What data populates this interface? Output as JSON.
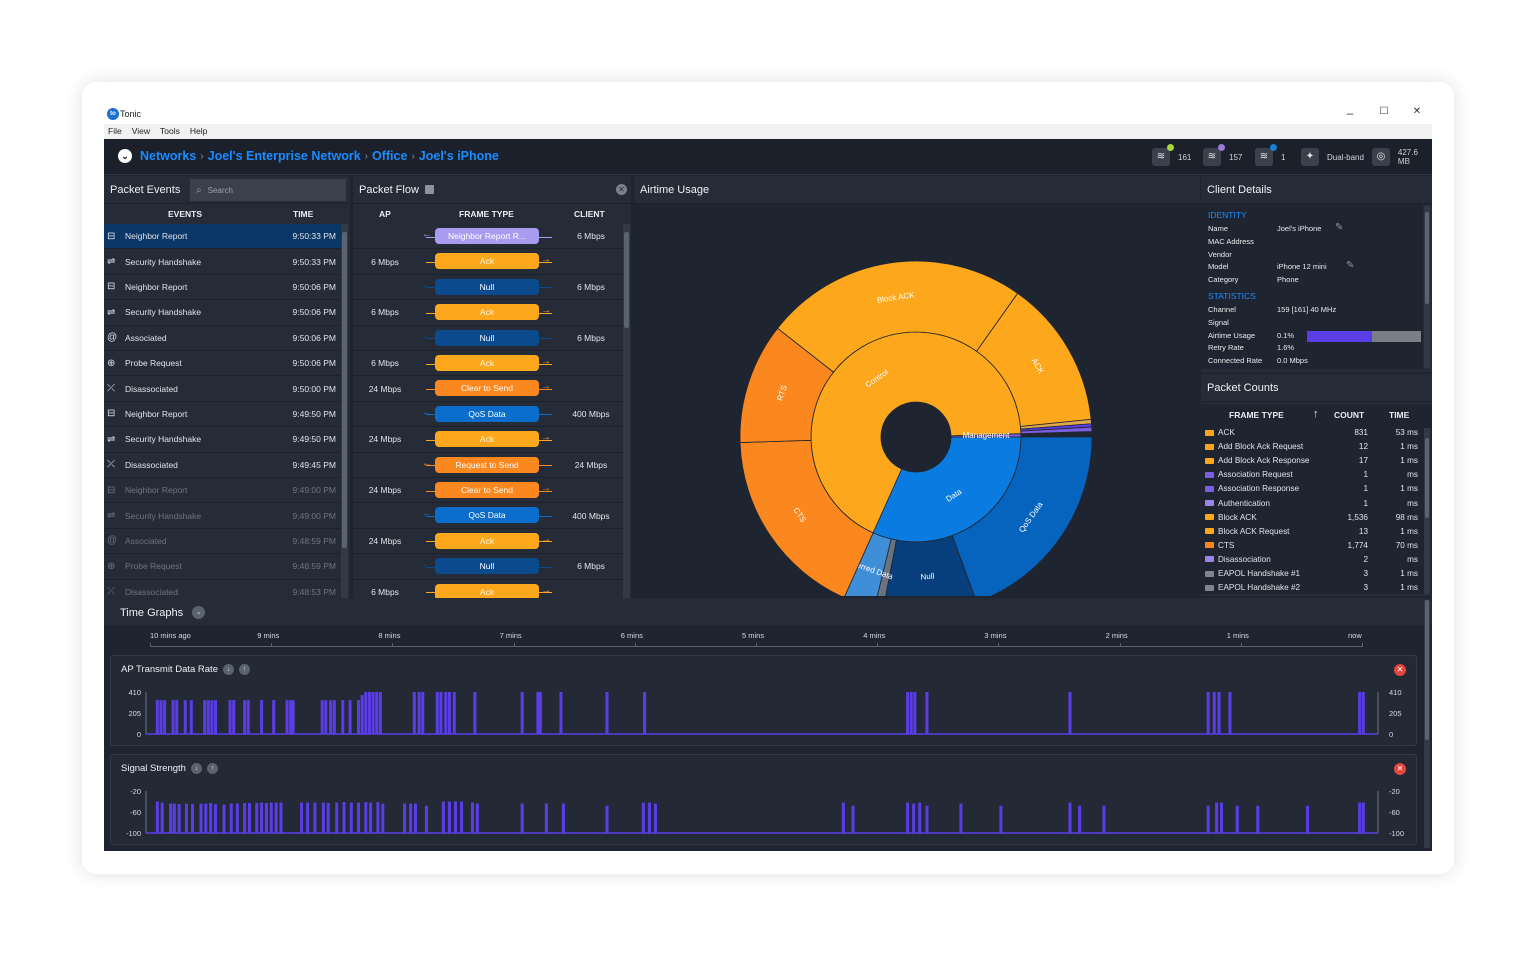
{
  "window": {
    "app_name": "Tonic",
    "logo_text": "to",
    "minimize": "–",
    "maximize": "☐",
    "close": "✕"
  },
  "menu": [
    "File",
    "View",
    "Tools",
    "Help"
  ],
  "breadcrumb": [
    "Networks",
    "Joel's Enterprise Network",
    "Office",
    "Joel's iPhone"
  ],
  "header_stats": [
    {
      "icon": "wifi-icon",
      "value": "161",
      "dot_color": "#a6d83a"
    },
    {
      "icon": "wifi-icon",
      "value": "157",
      "dot_color": "#9b7ad8"
    },
    {
      "icon": "wifi-icon",
      "value": "1",
      "dot_color": "#1a7fd8"
    },
    {
      "icon": "dual-band-icon",
      "value": "Dual-band"
    },
    {
      "icon": "storage-icon",
      "value": "427.6 MB"
    }
  ],
  "packet_events": {
    "title": "Packet Events",
    "search_placeholder": "Search",
    "columns": [
      "EVENTS",
      "TIME"
    ],
    "rows": [
      {
        "icon": "neighbor-report-icon",
        "event": "Neighbor Report",
        "time": "9:50:33 PM",
        "selected": true
      },
      {
        "icon": "handshake-icon",
        "event": "Security Handshake",
        "time": "9:50:33 PM"
      },
      {
        "icon": "neighbor-report-icon",
        "event": "Neighbor Report",
        "time": "9:50:06 PM"
      },
      {
        "icon": "handshake-icon",
        "event": "Security Handshake",
        "time": "9:50:06 PM"
      },
      {
        "icon": "at-icon",
        "event": "Associated",
        "time": "9:50:06 PM"
      },
      {
        "icon": "probe-icon",
        "event": "Probe Request",
        "time": "9:50:06 PM"
      },
      {
        "icon": "disassociated-icon",
        "event": "Disassociated",
        "time": "9:50:00 PM"
      },
      {
        "icon": "neighbor-report-icon",
        "event": "Neighbor Report",
        "time": "9:49:50 PM"
      },
      {
        "icon": "handshake-icon",
        "event": "Security Handshake",
        "time": "9:49:50 PM"
      },
      {
        "icon": "disassociated-icon",
        "event": "Disassociated",
        "time": "9:49:45 PM"
      },
      {
        "icon": "neighbor-report-icon",
        "event": "Neighbor Report",
        "time": "9:49:00 PM",
        "dim": true
      },
      {
        "icon": "handshake-icon",
        "event": "Security Handshake",
        "time": "9:49:00 PM",
        "dim": true
      },
      {
        "icon": "at-icon",
        "event": "Associated",
        "time": "9:48:59 PM",
        "dim": true
      },
      {
        "icon": "probe-icon",
        "event": "Probe Request",
        "time": "9:48:59 PM",
        "dim": true
      },
      {
        "icon": "disassociated-icon",
        "event": "Disassociated",
        "time": "9:48:53 PM",
        "dim": true
      }
    ]
  },
  "packet_flow": {
    "title": "Packet Flow",
    "columns": [
      "AP",
      "FRAME TYPE",
      "CLIENT"
    ],
    "rows": [
      {
        "ap": "",
        "frame": "Neighbor Report R...",
        "client": "6 Mbps",
        "dir": "left",
        "color": "#a99cf0"
      },
      {
        "ap": "6 Mbps",
        "frame": "Ack",
        "client": "",
        "dir": "right",
        "color": "#fca71c"
      },
      {
        "ap": "",
        "frame": "Null",
        "client": "6 Mbps",
        "dir": "left",
        "color": "#0b4a8c"
      },
      {
        "ap": "6 Mbps",
        "frame": "Ack",
        "client": "",
        "dir": "right",
        "color": "#fca71c"
      },
      {
        "ap": "",
        "frame": "Null",
        "client": "6 Mbps",
        "dir": "left",
        "color": "#0b4a8c"
      },
      {
        "ap": "6 Mbps",
        "frame": "Ack",
        "client": "",
        "dir": "right",
        "color": "#fca71c"
      },
      {
        "ap": "24 Mbps",
        "frame": "Clear to Send",
        "client": "",
        "dir": "right",
        "color": "#fb871f"
      },
      {
        "ap": "",
        "frame": "QoS Data",
        "client": "400 Mbps",
        "dir": "left",
        "color": "#0a6dcc"
      },
      {
        "ap": "24 Mbps",
        "frame": "Ack",
        "client": "",
        "dir": "right",
        "color": "#fca71c"
      },
      {
        "ap": "",
        "frame": "Request to Send",
        "client": "24 Mbps",
        "dir": "left",
        "color": "#fb871f"
      },
      {
        "ap": "24 Mbps",
        "frame": "Clear to Send",
        "client": "",
        "dir": "right",
        "color": "#fb871f"
      },
      {
        "ap": "",
        "frame": "QoS Data",
        "client": "400 Mbps",
        "dir": "left",
        "color": "#0a6dcc"
      },
      {
        "ap": "24 Mbps",
        "frame": "Ack",
        "client": "",
        "dir": "right",
        "color": "#fca71c"
      },
      {
        "ap": "",
        "frame": "Null",
        "client": "6 Mbps",
        "dir": "left",
        "color": "#0b4a8c"
      },
      {
        "ap": "6 Mbps",
        "frame": "Ack",
        "client": "",
        "dir": "right",
        "color": "#fca71c"
      }
    ]
  },
  "airtime": {
    "title": "Airtime Usage",
    "inner": [
      {
        "label": "Data",
        "percent": 31.7,
        "color": "#0a7be0"
      },
      {
        "label": "Control",
        "percent": 67.8,
        "color": "#fca71c"
      },
      {
        "label": "Management",
        "percent": 0.5,
        "color": "#7a5fe0"
      }
    ],
    "outer": [
      {
        "label": "QoS Data",
        "percent": 19.4,
        "color": "#0663be"
      },
      {
        "label": "Null",
        "percent": 8.6,
        "color": "#063f7c"
      },
      {
        "label": "",
        "percent": 0.8,
        "color": "#6b7280"
      },
      {
        "label": "Inferred Data",
        "percent": 2.9,
        "color": "#3f8fd8"
      },
      {
        "label": "CTS",
        "percent": 17.8,
        "color": "#fb871f"
      },
      {
        "label": "RTS",
        "percent": 11.1,
        "color": "#fb871f"
      },
      {
        "label": "Block ACK",
        "percent": 24.2,
        "color": "#fca71c"
      },
      {
        "label": "ACK",
        "percent": 13.6,
        "color": "#fca71c"
      },
      {
        "label": "",
        "percent": 0.4,
        "color": "#e0a64a"
      },
      {
        "label": "",
        "percent": 0.3,
        "color": "#5b3de8"
      },
      {
        "label": "",
        "percent": 0.4,
        "color": "#7a5fe0"
      }
    ]
  },
  "client_details": {
    "title": "Client Details",
    "identity_label": "IDENTITY",
    "identity": [
      {
        "key": "Name",
        "value": "Joel's iPhone",
        "editable": true
      },
      {
        "key": "MAC Address",
        "value": ""
      },
      {
        "key": "Vendor",
        "value": ""
      },
      {
        "key": "Model",
        "value": "iPhone 12 mini",
        "editable": true
      },
      {
        "key": "Category",
        "value": "Phone"
      }
    ],
    "statistics_label": "STATISTICS",
    "statistics": [
      {
        "key": "Channel",
        "value": "159 [161]   40 MHz"
      },
      {
        "key": "Signal",
        "value": ""
      },
      {
        "key": "Airtime Usage",
        "value": "0.1%",
        "bar_fraction": 0.57
      },
      {
        "key": "Retry Rate",
        "value": "1.6%"
      },
      {
        "key": "Connected Rate",
        "value": "0.0 Mbps"
      }
    ]
  },
  "packet_counts": {
    "title": "Packet Counts",
    "columns": [
      "FRAME TYPE",
      "COUNT",
      "TIME"
    ],
    "rows": [
      {
        "type": "ACK",
        "count": "831",
        "time": "53 ms",
        "color": "#fca71c"
      },
      {
        "type": "Add Block Ack Request",
        "count": "12",
        "time": "1 ms",
        "color": "#fca71c"
      },
      {
        "type": "Add Block Ack Response",
        "count": "17",
        "time": "1 ms",
        "color": "#fca71c"
      },
      {
        "type": "Association Request",
        "count": "1",
        "time": "ms",
        "color": "#7a5fe0"
      },
      {
        "type": "Association Response",
        "count": "1",
        "time": "1 ms",
        "color": "#7a5fe0"
      },
      {
        "type": "Authentication",
        "count": "1",
        "time": "ms",
        "color": "#9b85e8"
      },
      {
        "type": "Block ACK",
        "count": "1,536",
        "time": "98 ms",
        "color": "#fca71c"
      },
      {
        "type": "Block ACK Request",
        "count": "13",
        "time": "1 ms",
        "color": "#fca71c"
      },
      {
        "type": "CTS",
        "count": "1,774",
        "time": "70 ms",
        "color": "#fb871f"
      },
      {
        "type": "Disassociation",
        "count": "2",
        "time": "ms",
        "color": "#9b85e8"
      },
      {
        "type": "EAPOL Handshake #1",
        "count": "3",
        "time": "1 ms",
        "color": "#80868f"
      },
      {
        "type": "EAPOL Handshake #2",
        "count": "3",
        "time": "1 ms",
        "color": "#80868f"
      }
    ]
  },
  "time_graphs": {
    "title": "Time Graphs",
    "axis_labels": [
      "10 mins ago",
      "9 mins",
      "8 mins",
      "7 mins",
      "6 mins",
      "5 mins",
      "4 mins",
      "3 mins",
      "2 mins",
      "1 mins",
      "now"
    ],
    "bar_color": "#5b3de8",
    "graphs": [
      {
        "title": "AP Transmit Data Rate",
        "y_ticks": [
          "410",
          "205",
          "0"
        ],
        "ylim": [
          0,
          410
        ],
        "points": [
          [
            9.96,
            330
          ],
          [
            9.93,
            330
          ],
          [
            9.9,
            330
          ],
          [
            9.83,
            330
          ],
          [
            9.8,
            330
          ],
          [
            9.73,
            330
          ],
          [
            9.68,
            330
          ],
          [
            9.57,
            330
          ],
          [
            9.54,
            330
          ],
          [
            9.51,
            330
          ],
          [
            9.48,
            330
          ],
          [
            9.36,
            330
          ],
          [
            9.33,
            330
          ],
          [
            9.24,
            330
          ],
          [
            9.21,
            330
          ],
          [
            9.1,
            330
          ],
          [
            9.0,
            330
          ],
          [
            8.89,
            330
          ],
          [
            8.86,
            330
          ],
          [
            8.84,
            330
          ],
          [
            8.6,
            330
          ],
          [
            8.57,
            330
          ],
          [
            8.53,
            330
          ],
          [
            8.5,
            330
          ],
          [
            8.43,
            330
          ],
          [
            8.37,
            330
          ],
          [
            8.3,
            330
          ],
          [
            8.27,
            380
          ],
          [
            8.24,
            410
          ],
          [
            8.21,
            410
          ],
          [
            8.18,
            410
          ],
          [
            8.15,
            410
          ],
          [
            8.12,
            410
          ],
          [
            7.84,
            410
          ],
          [
            7.8,
            410
          ],
          [
            7.77,
            410
          ],
          [
            7.65,
            410
          ],
          [
            7.62,
            410
          ],
          [
            7.58,
            410
          ],
          [
            7.55,
            410
          ],
          [
            7.51,
            410
          ],
          [
            7.34,
            410
          ],
          [
            6.95,
            410
          ],
          [
            6.82,
            410
          ],
          [
            6.8,
            410
          ],
          [
            6.63,
            410
          ],
          [
            6.25,
            410
          ],
          [
            5.94,
            410
          ],
          [
            3.77,
            410
          ],
          [
            3.74,
            410
          ],
          [
            3.71,
            410
          ],
          [
            3.61,
            410
          ],
          [
            2.43,
            410
          ],
          [
            1.29,
            410
          ],
          [
            1.24,
            410
          ],
          [
            1.2,
            410
          ],
          [
            1.11,
            410
          ],
          [
            0.04,
            410
          ],
          [
            0.01,
            410
          ]
        ]
      },
      {
        "title": "Signal Strength",
        "y_ticks": [
          "-20",
          "-60",
          "-100"
        ],
        "ylim": [
          -100,
          -20
        ],
        "points": [
          [
            9.96,
            -40
          ],
          [
            9.92,
            -42
          ],
          [
            9.85,
            -44
          ],
          [
            9.82,
            -44
          ],
          [
            9.78,
            -45
          ],
          [
            9.72,
            -44
          ],
          [
            9.67,
            -45
          ],
          [
            9.6,
            -44
          ],
          [
            9.56,
            -44
          ],
          [
            9.52,
            -43
          ],
          [
            9.48,
            -45
          ],
          [
            9.41,
            -46
          ],
          [
            9.35,
            -44
          ],
          [
            9.3,
            -44
          ],
          [
            9.24,
            -43
          ],
          [
            9.2,
            -43
          ],
          [
            9.14,
            -43
          ],
          [
            9.1,
            -42
          ],
          [
            9.06,
            -43
          ],
          [
            9.02,
            -42
          ],
          [
            8.98,
            -42
          ],
          [
            8.94,
            -42
          ],
          [
            8.77,
            -42
          ],
          [
            8.72,
            -42
          ],
          [
            8.66,
            -42
          ],
          [
            8.59,
            -42
          ],
          [
            8.55,
            -43
          ],
          [
            8.48,
            -42
          ],
          [
            8.42,
            -41
          ],
          [
            8.36,
            -42
          ],
          [
            8.3,
            -42
          ],
          [
            8.24,
            -41
          ],
          [
            8.2,
            -42
          ],
          [
            8.14,
            -41
          ],
          [
            8.1,
            -44
          ],
          [
            7.92,
            -44
          ],
          [
            7.87,
            -44
          ],
          [
            7.83,
            -44
          ],
          [
            7.74,
            -48
          ],
          [
            7.6,
            -40
          ],
          [
            7.55,
            -40
          ],
          [
            7.5,
            -40
          ],
          [
            7.45,
            -40
          ],
          [
            7.36,
            -42
          ],
          [
            7.32,
            -44
          ],
          [
            6.95,
            -44
          ],
          [
            6.75,
            -44
          ],
          [
            6.61,
            -44
          ],
          [
            6.25,
            -48
          ],
          [
            5.95,
            -42
          ],
          [
            5.9,
            -42
          ],
          [
            5.85,
            -44
          ],
          [
            4.3,
            -42
          ],
          [
            4.22,
            -48
          ],
          [
            3.77,
            -42
          ],
          [
            3.72,
            -44
          ],
          [
            3.67,
            -42
          ],
          [
            3.61,
            -48
          ],
          [
            3.33,
            -44
          ],
          [
            3.0,
            -48
          ],
          [
            2.43,
            -42
          ],
          [
            2.35,
            -48
          ],
          [
            2.15,
            -48
          ],
          [
            1.29,
            -48
          ],
          [
            1.22,
            -42
          ],
          [
            1.18,
            -42
          ],
          [
            1.05,
            -48
          ],
          [
            0.88,
            -48
          ],
          [
            0.47,
            -48
          ],
          [
            0.04,
            -42
          ],
          [
            0.01,
            -42
          ]
        ]
      }
    ]
  }
}
